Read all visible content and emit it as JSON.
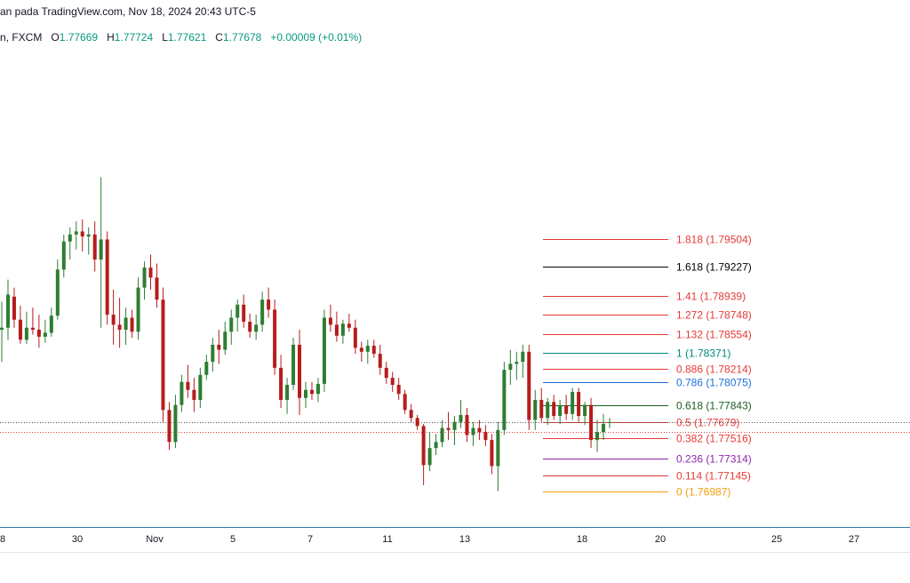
{
  "header": {
    "text": "an pada TradingView.com, Nov 18, 2024 20:43 UTC-5"
  },
  "ohlc": {
    "exchange": "n, FXCM",
    "o_label": "O",
    "o_value": "1.77669",
    "h_label": "H",
    "h_value": "1.77724",
    "l_label": "L",
    "l_value": "1.77621",
    "c_label": "C",
    "c_value": "1.77678",
    "change": "+0.00009 (+0.01%)"
  },
  "colors": {
    "up": "#2e7d32",
    "down": "#b71c1c",
    "axis": "#2a7fa6",
    "current_price": "#e53935"
  },
  "chart_data": {
    "type": "candlestick",
    "x_ticks": [
      "8",
      "30",
      "Nov",
      "5",
      "7",
      "11",
      "13",
      "18",
      "20",
      "25",
      "27"
    ],
    "fib_levels": [
      {
        "label": "1.818 (1.79504)",
        "ratio": 1.818,
        "price": 1.79504,
        "color": "#e53935"
      },
      {
        "label": "1.618 (1.79227)",
        "ratio": 1.618,
        "price": 1.79227,
        "color": "#000000"
      },
      {
        "label": "1.41 (1.78939)",
        "ratio": 1.41,
        "price": 1.78939,
        "color": "#e53935"
      },
      {
        "label": "1.272 (1.78748)",
        "ratio": 1.272,
        "price": 1.78748,
        "color": "#e53935"
      },
      {
        "label": "1.132 (1.78554)",
        "ratio": 1.132,
        "price": 1.78554,
        "color": "#e53935"
      },
      {
        "label": "1 (1.78371)",
        "ratio": 1,
        "price": 1.78371,
        "color": "#00897b"
      },
      {
        "label": "0.886 (1.78214)",
        "ratio": 0.886,
        "price": 1.78214,
        "color": "#e53935"
      },
      {
        "label": "0.786 (1.78075)",
        "ratio": 0.786,
        "price": 1.78075,
        "color": "#1e6fd9"
      },
      {
        "label": "0.618 (1.77843)",
        "ratio": 0.618,
        "price": 1.77843,
        "color": "#1b5e20"
      },
      {
        "label": "0.5 (1.77679)",
        "ratio": 0.5,
        "price": 1.77679,
        "color": "#e53935"
      },
      {
        "label": "0.382 (1.77516)",
        "ratio": 0.382,
        "price": 1.77516,
        "color": "#e53935"
      },
      {
        "label": "0.236 (1.77314)",
        "ratio": 0.236,
        "price": 1.77314,
        "color": "#8e24aa"
      },
      {
        "label": "0.114 (1.77145)",
        "ratio": 0.114,
        "price": 1.77145,
        "color": "#e53935"
      },
      {
        "label": "0 (1.76987)",
        "ratio": 0,
        "price": 1.76987,
        "color": "#f59e0b"
      }
    ],
    "last_price": 1.77678,
    "candles": [
      {
        "o": 1.786,
        "h": 1.7888,
        "l": 1.7828,
        "c": 1.7862
      },
      {
        "o": 1.7862,
        "h": 1.791,
        "l": 1.785,
        "c": 1.7895
      },
      {
        "o": 1.7893,
        "h": 1.7902,
        "l": 1.7862,
        "c": 1.787
      },
      {
        "o": 1.787,
        "h": 1.7884,
        "l": 1.7846,
        "c": 1.785
      },
      {
        "o": 1.785,
        "h": 1.7878,
        "l": 1.7846,
        "c": 1.7862
      },
      {
        "o": 1.7862,
        "h": 1.7882,
        "l": 1.7855,
        "c": 1.786
      },
      {
        "o": 1.786,
        "h": 1.7875,
        "l": 1.7842,
        "c": 1.7853
      },
      {
        "o": 1.7853,
        "h": 1.787,
        "l": 1.7847,
        "c": 1.7857
      },
      {
        "o": 1.7857,
        "h": 1.7882,
        "l": 1.7853,
        "c": 1.7874
      },
      {
        "o": 1.7874,
        "h": 1.793,
        "l": 1.787,
        "c": 1.792
      },
      {
        "o": 1.792,
        "h": 1.7955,
        "l": 1.7912,
        "c": 1.7948
      },
      {
        "o": 1.7948,
        "h": 1.7962,
        "l": 1.793,
        "c": 1.7955
      },
      {
        "o": 1.7955,
        "h": 1.7968,
        "l": 1.794,
        "c": 1.7958
      },
      {
        "o": 1.7958,
        "h": 1.797,
        "l": 1.7938,
        "c": 1.7953
      },
      {
        "o": 1.7953,
        "h": 1.7962,
        "l": 1.7935,
        "c": 1.7955
      },
      {
        "o": 1.7955,
        "h": 1.7968,
        "l": 1.7918,
        "c": 1.793
      },
      {
        "o": 1.793,
        "h": 1.8012,
        "l": 1.7862,
        "c": 1.795
      },
      {
        "o": 1.795,
        "h": 1.7958,
        "l": 1.7865,
        "c": 1.7875
      },
      {
        "o": 1.7875,
        "h": 1.79,
        "l": 1.7845,
        "c": 1.7865
      },
      {
        "o": 1.7865,
        "h": 1.7892,
        "l": 1.7842,
        "c": 1.786
      },
      {
        "o": 1.786,
        "h": 1.7882,
        "l": 1.7845,
        "c": 1.7872
      },
      {
        "o": 1.7872,
        "h": 1.788,
        "l": 1.7852,
        "c": 1.7858
      },
      {
        "o": 1.7858,
        "h": 1.7912,
        "l": 1.785,
        "c": 1.7902
      },
      {
        "o": 1.7902,
        "h": 1.7928,
        "l": 1.789,
        "c": 1.7922
      },
      {
        "o": 1.7922,
        "h": 1.7935,
        "l": 1.79,
        "c": 1.7912
      },
      {
        "o": 1.7912,
        "h": 1.7926,
        "l": 1.7882,
        "c": 1.789
      },
      {
        "o": 1.789,
        "h": 1.7902,
        "l": 1.7768,
        "c": 1.778
      },
      {
        "o": 1.778,
        "h": 1.7788,
        "l": 1.774,
        "c": 1.7748
      },
      {
        "o": 1.7748,
        "h": 1.7795,
        "l": 1.7742,
        "c": 1.7785
      },
      {
        "o": 1.7785,
        "h": 1.7815,
        "l": 1.7778,
        "c": 1.7808
      },
      {
        "o": 1.7808,
        "h": 1.7825,
        "l": 1.7792,
        "c": 1.78
      },
      {
        "o": 1.78,
        "h": 1.7812,
        "l": 1.7778,
        "c": 1.779
      },
      {
        "o": 1.779,
        "h": 1.7822,
        "l": 1.7782,
        "c": 1.7815
      },
      {
        "o": 1.7815,
        "h": 1.7835,
        "l": 1.781,
        "c": 1.7828
      },
      {
        "o": 1.7828,
        "h": 1.7852,
        "l": 1.7818,
        "c": 1.7845
      },
      {
        "o": 1.7845,
        "h": 1.786,
        "l": 1.7826,
        "c": 1.784
      },
      {
        "o": 1.784,
        "h": 1.7868,
        "l": 1.7835,
        "c": 1.7858
      },
      {
        "o": 1.7858,
        "h": 1.788,
        "l": 1.7845,
        "c": 1.7872
      },
      {
        "o": 1.7872,
        "h": 1.789,
        "l": 1.7858,
        "c": 1.7885
      },
      {
        "o": 1.7885,
        "h": 1.7895,
        "l": 1.7862,
        "c": 1.7868
      },
      {
        "o": 1.7868,
        "h": 1.7876,
        "l": 1.7852,
        "c": 1.7858
      },
      {
        "o": 1.7858,
        "h": 1.7875,
        "l": 1.785,
        "c": 1.7865
      },
      {
        "o": 1.7865,
        "h": 1.7898,
        "l": 1.7858,
        "c": 1.789
      },
      {
        "o": 1.789,
        "h": 1.7902,
        "l": 1.7872,
        "c": 1.788
      },
      {
        "o": 1.788,
        "h": 1.789,
        "l": 1.7815,
        "c": 1.7822
      },
      {
        "o": 1.7822,
        "h": 1.7835,
        "l": 1.7782,
        "c": 1.779
      },
      {
        "o": 1.779,
        "h": 1.7812,
        "l": 1.7776,
        "c": 1.7805
      },
      {
        "o": 1.7805,
        "h": 1.7852,
        "l": 1.78,
        "c": 1.7845
      },
      {
        "o": 1.7845,
        "h": 1.786,
        "l": 1.7775,
        "c": 1.7792
      },
      {
        "o": 1.7792,
        "h": 1.7808,
        "l": 1.7782,
        "c": 1.78
      },
      {
        "o": 1.78,
        "h": 1.7808,
        "l": 1.779,
        "c": 1.7796
      },
      {
        "o": 1.7796,
        "h": 1.7812,
        "l": 1.7788,
        "c": 1.7806
      },
      {
        "o": 1.7806,
        "h": 1.788,
        "l": 1.7798,
        "c": 1.7872
      },
      {
        "o": 1.7872,
        "h": 1.7885,
        "l": 1.7858,
        "c": 1.7865
      },
      {
        "o": 1.7865,
        "h": 1.7878,
        "l": 1.7848,
        "c": 1.7854
      },
      {
        "o": 1.7854,
        "h": 1.787,
        "l": 1.7846,
        "c": 1.7866
      },
      {
        "o": 1.7866,
        "h": 1.7876,
        "l": 1.7858,
        "c": 1.7862
      },
      {
        "o": 1.7862,
        "h": 1.787,
        "l": 1.7836,
        "c": 1.7842
      },
      {
        "o": 1.7842,
        "h": 1.7848,
        "l": 1.7828,
        "c": 1.7838
      },
      {
        "o": 1.7838,
        "h": 1.785,
        "l": 1.7826,
        "c": 1.7844
      },
      {
        "o": 1.7844,
        "h": 1.785,
        "l": 1.7832,
        "c": 1.7836
      },
      {
        "o": 1.7836,
        "h": 1.7845,
        "l": 1.7815,
        "c": 1.7822
      },
      {
        "o": 1.7822,
        "h": 1.7828,
        "l": 1.7806,
        "c": 1.7812
      },
      {
        "o": 1.7812,
        "h": 1.7818,
        "l": 1.7798,
        "c": 1.7805
      },
      {
        "o": 1.7805,
        "h": 1.7812,
        "l": 1.779,
        "c": 1.7796
      },
      {
        "o": 1.7796,
        "h": 1.78,
        "l": 1.7776,
        "c": 1.778
      },
      {
        "o": 1.778,
        "h": 1.7786,
        "l": 1.7768,
        "c": 1.7772
      },
      {
        "o": 1.7772,
        "h": 1.7775,
        "l": 1.776,
        "c": 1.7764
      },
      {
        "o": 1.7764,
        "h": 1.7766,
        "l": 1.7705,
        "c": 1.7725
      },
      {
        "o": 1.7725,
        "h": 1.7758,
        "l": 1.7719,
        "c": 1.7742
      },
      {
        "o": 1.7742,
        "h": 1.7756,
        "l": 1.7735,
        "c": 1.7748
      },
      {
        "o": 1.7748,
        "h": 1.777,
        "l": 1.7743,
        "c": 1.7762
      },
      {
        "o": 1.7762,
        "h": 1.7778,
        "l": 1.775,
        "c": 1.776
      },
      {
        "o": 1.776,
        "h": 1.7774,
        "l": 1.7745,
        "c": 1.7768
      },
      {
        "o": 1.7768,
        "h": 1.779,
        "l": 1.7762,
        "c": 1.7775
      },
      {
        "o": 1.7775,
        "h": 1.7782,
        "l": 1.7748,
        "c": 1.7755
      },
      {
        "o": 1.7755,
        "h": 1.7768,
        "l": 1.7744,
        "c": 1.7762
      },
      {
        "o": 1.7762,
        "h": 1.777,
        "l": 1.775,
        "c": 1.7758
      },
      {
        "o": 1.7758,
        "h": 1.7765,
        "l": 1.7744,
        "c": 1.775
      },
      {
        "o": 1.775,
        "h": 1.7756,
        "l": 1.7716,
        "c": 1.7724
      },
      {
        "o": 1.7724,
        "h": 1.7768,
        "l": 1.7699,
        "c": 1.776
      },
      {
        "o": 1.776,
        "h": 1.7828,
        "l": 1.7755,
        "c": 1.782
      },
      {
        "o": 1.782,
        "h": 1.784,
        "l": 1.7805,
        "c": 1.7826
      },
      {
        "o": 1.7826,
        "h": 1.7838,
        "l": 1.781,
        "c": 1.7828
      },
      {
        "o": 1.7828,
        "h": 1.7845,
        "l": 1.7812,
        "c": 1.7838
      },
      {
        "o": 1.7838,
        "h": 1.7845,
        "l": 1.776,
        "c": 1.777
      },
      {
        "o": 1.777,
        "h": 1.78,
        "l": 1.776,
        "c": 1.779
      },
      {
        "o": 1.779,
        "h": 1.7802,
        "l": 1.7768,
        "c": 1.7772
      },
      {
        "o": 1.7772,
        "h": 1.7792,
        "l": 1.7765,
        "c": 1.7788
      },
      {
        "o": 1.7788,
        "h": 1.7795,
        "l": 1.777,
        "c": 1.7774
      },
      {
        "o": 1.7774,
        "h": 1.779,
        "l": 1.7766,
        "c": 1.7784
      },
      {
        "o": 1.7784,
        "h": 1.7795,
        "l": 1.777,
        "c": 1.7776
      },
      {
        "o": 1.7776,
        "h": 1.7802,
        "l": 1.777,
        "c": 1.7798
      },
      {
        "o": 1.7798,
        "h": 1.7802,
        "l": 1.7768,
        "c": 1.7774
      },
      {
        "o": 1.7774,
        "h": 1.7788,
        "l": 1.7765,
        "c": 1.7785
      },
      {
        "o": 1.7785,
        "h": 1.7792,
        "l": 1.7742,
        "c": 1.775
      },
      {
        "o": 1.775,
        "h": 1.777,
        "l": 1.7738,
        "c": 1.7758
      },
      {
        "o": 1.7758,
        "h": 1.7776,
        "l": 1.775,
        "c": 1.7766
      },
      {
        "o": 1.7767,
        "h": 1.7772,
        "l": 1.7762,
        "c": 1.77678
      }
    ]
  }
}
